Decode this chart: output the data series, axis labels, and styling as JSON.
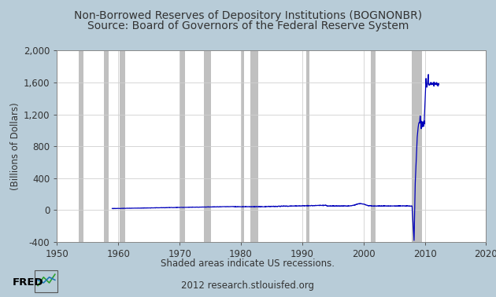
{
  "title_line1": "Non-Borrowed Reserves of Depository Institutions (BOGNONBR)",
  "title_line2": "Source: Board of Governors of the Federal Reserve System",
  "ylabel": "(Billions of Dollars)",
  "xlim": [
    1950,
    2020
  ],
  "ylim": [
    -400,
    2000
  ],
  "yticks": [
    -400,
    0,
    400,
    800,
    1200,
    1600,
    2000
  ],
  "xticks": [
    1950,
    1960,
    1970,
    1980,
    1990,
    2000,
    2010,
    2020
  ],
  "bg_color": "#b8ccd8",
  "plot_bg_color": "#ffffff",
  "line_color": "#0000bb",
  "recession_color": "#c0c0c0",
  "recession_alpha": 1.0,
  "recessions": [
    [
      1953.58,
      1954.33
    ],
    [
      1957.67,
      1958.42
    ],
    [
      1960.25,
      1961.17
    ],
    [
      1969.92,
      1970.92
    ],
    [
      1973.92,
      1975.17
    ],
    [
      1980.0,
      1980.5
    ],
    [
      1981.5,
      1982.83
    ],
    [
      1990.67,
      1991.17
    ],
    [
      2001.17,
      2001.92
    ],
    [
      2007.92,
      2009.5
    ]
  ],
  "title_fontsize": 10,
  "label_fontsize": 8.5,
  "tick_fontsize": 8.5,
  "bottom_note1": "Shaded areas indicate US recessions.",
  "bottom_note2": "2012 research.stlouisfed.org"
}
